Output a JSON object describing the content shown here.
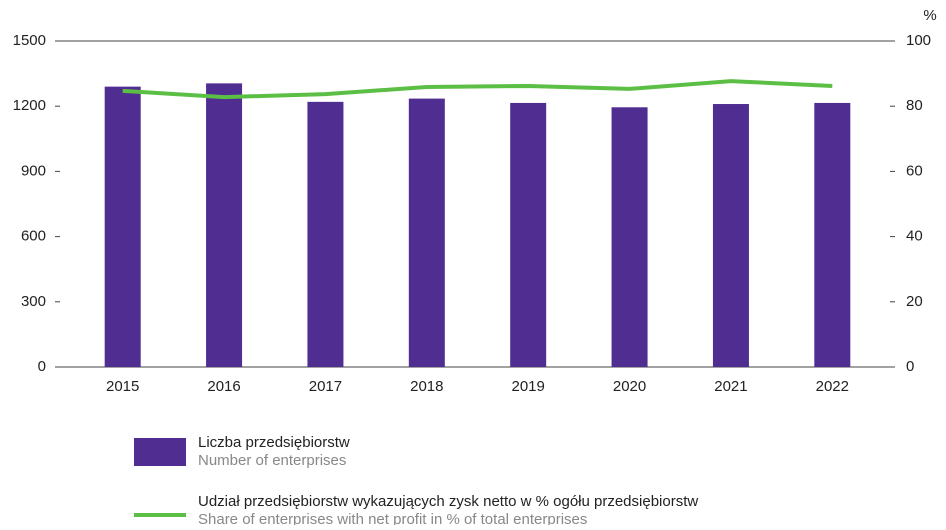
{
  "chart_data": {
    "type": "bar-line",
    "categories": [
      "2015",
      "2016",
      "2017",
      "2018",
      "2019",
      "2020",
      "2021",
      "2022"
    ],
    "series": [
      {
        "name": "Liczba przedsiębiorstw",
        "name_en": "Number of enterprises",
        "type": "bar",
        "color": "#4f2d91",
        "values": [
          1290,
          1305,
          1220,
          1235,
          1215,
          1195,
          1210,
          1215
        ]
      },
      {
        "name": "Udział przedsiębiorstw wykazujących zysk netto w % ogółu przedsiębiorstw",
        "name_en": "Share of enterprises with net profit in % of total enterprises",
        "type": "line",
        "axis": "y2",
        "color": "#5cbf45",
        "values": [
          84.7,
          82.8,
          83.7,
          85.9,
          86.2,
          85.3,
          87.7,
          86.2
        ]
      }
    ],
    "ylim": [
      0,
      1500
    ],
    "yticks": [
      0,
      300,
      600,
      900,
      1200,
      1500
    ],
    "y2label": "%",
    "y2lim": [
      0,
      100
    ],
    "y2ticks": [
      0,
      20,
      40,
      60,
      80,
      100
    ]
  }
}
